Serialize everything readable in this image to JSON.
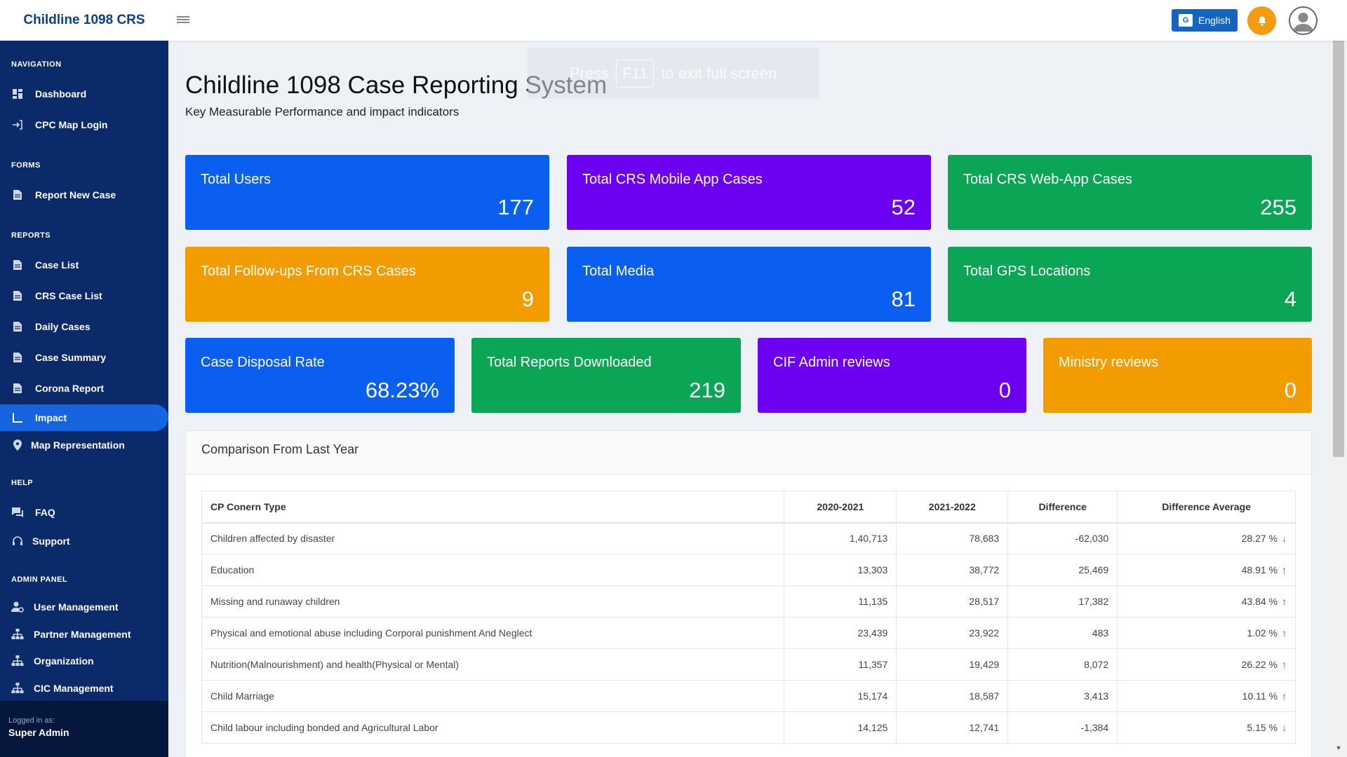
{
  "app": {
    "brand": "Childline 1098 CRS",
    "language_label": "English",
    "language_icon": "translate-icon"
  },
  "fullscreen_hint": {
    "pre": "Press",
    "key": "F11",
    "post": "to exit full screen"
  },
  "sidebar": {
    "sections": {
      "navigation": "NAVIGATION",
      "forms": "FORMS",
      "reports": "REPORTS",
      "help": "HELP",
      "admin": "ADMIN PANEL"
    },
    "items": [
      {
        "label": "Dashboard",
        "icon": "dashboard-icon"
      },
      {
        "label": "CPC Map Login",
        "icon": "login-icon"
      },
      {
        "label": "Report New Case",
        "icon": "document-icon"
      },
      {
        "label": "Case List",
        "icon": "document-icon"
      },
      {
        "label": "CRS Case List",
        "icon": "document-icon"
      },
      {
        "label": "Daily Cases",
        "icon": "document-icon"
      },
      {
        "label": "Case Summary",
        "icon": "document-icon"
      },
      {
        "label": "Corona Report",
        "icon": "document-icon"
      },
      {
        "label": "Impact",
        "icon": "chart-axis-icon"
      },
      {
        "label": "Map Representation",
        "icon": "map-pin-icon"
      },
      {
        "label": "FAQ",
        "icon": "chat-icon"
      },
      {
        "label": "Support",
        "icon": "headset-icon"
      },
      {
        "label": "User Management",
        "icon": "user-gear-icon"
      },
      {
        "label": "Partner Management",
        "icon": "sitemap-icon"
      },
      {
        "label": "Organization",
        "icon": "sitemap-icon"
      },
      {
        "label": "CIC Management",
        "icon": "sitemap-icon"
      }
    ],
    "logged_in_label": "Logged in as:",
    "logged_in_user": "Super Admin"
  },
  "header": {
    "title": "Childline 1098 Case Reporting System",
    "subtitle": "Key Measurable Performance and impact indicators"
  },
  "cards": [
    {
      "label": "Total Users",
      "value": "177",
      "color": "#0a5ff0"
    },
    {
      "label": "Total CRS Mobile App Cases",
      "value": "52",
      "color": "#6c00f0"
    },
    {
      "label": "Total CRS Web-App Cases",
      "value": "255",
      "color": "#0aa656"
    },
    {
      "label": "Total Follow-ups From CRS Cases",
      "value": "9",
      "color": "#f39c00"
    },
    {
      "label": "Total Media",
      "value": "81",
      "color": "#0a5ff0"
    },
    {
      "label": "Total GPS Locations",
      "value": "4",
      "color": "#0aa656"
    },
    {
      "label": "Case Disposal Rate",
      "value": "68.23%",
      "color": "#0a5ff0"
    },
    {
      "label": "Total Reports Downloaded",
      "value": "219",
      "color": "#0aa656"
    },
    {
      "label": "CIF Admin reviews",
      "value": "0",
      "color": "#6c00f0"
    },
    {
      "label": "Ministry reviews",
      "value": "0",
      "color": "#f39c00"
    }
  ],
  "comparison": {
    "title": "Comparison From Last Year",
    "columns": [
      "CP Conern Type",
      "2020-2021",
      "2021-2022",
      "Difference",
      "Difference Average"
    ],
    "rows": [
      {
        "type": "Children affected by disaster",
        "y1": "1,40,713",
        "y2": "78,683",
        "diff": "-62,030",
        "avg": "28.27 %",
        "trend": "down"
      },
      {
        "type": "Education",
        "y1": "13,303",
        "y2": "38,772",
        "diff": "25,469",
        "avg": "48.91 %",
        "trend": "up"
      },
      {
        "type": "Missing and runaway children",
        "y1": "11,135",
        "y2": "28,517",
        "diff": "17,382",
        "avg": "43.84 %",
        "trend": "up"
      },
      {
        "type": "Physical and emotional abuse including Corporal punishment And Neglect",
        "y1": "23,439",
        "y2": "23,922",
        "diff": "483",
        "avg": "1.02 %",
        "trend": "up"
      },
      {
        "type": "Nutrition(Malnourishment) and health(Physical or Mental)",
        "y1": "11,357",
        "y2": "19,429",
        "diff": "8,072",
        "avg": "26.22 %",
        "trend": "up"
      },
      {
        "type": "Child Marriage",
        "y1": "15,174",
        "y2": "18,587",
        "diff": "3,413",
        "avg": "10.11 %",
        "trend": "up"
      },
      {
        "type": "Child labour including bonded and Agricultural Labor",
        "y1": "14,125",
        "y2": "12,741",
        "diff": "-1,384",
        "avg": "5.15 %",
        "trend": "down"
      }
    ]
  }
}
